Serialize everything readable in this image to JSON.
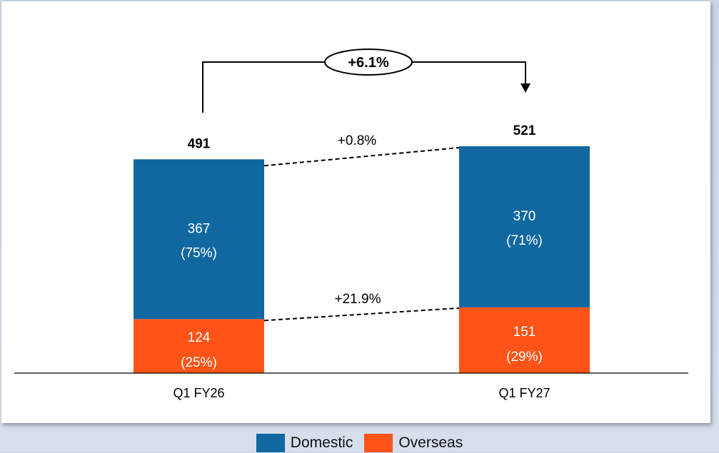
{
  "chart_data": {
    "type": "bar",
    "stacked": true,
    "categories": [
      "Q1 FY26",
      "Q1 FY27"
    ],
    "series": [
      {
        "name": "Domestic",
        "values": [
          367,
          370
        ],
        "labels": [
          "367",
          "370"
        ],
        "shares": [
          "(75%)",
          "(71%)"
        ],
        "color": "#1168a0"
      },
      {
        "name": "Overseas",
        "values": [
          124,
          151
        ],
        "labels": [
          "124",
          "151"
        ],
        "shares": [
          "(25%)",
          "(29%)"
        ],
        "color": "#ff5317"
      }
    ],
    "totals": [
      "491",
      "521"
    ],
    "growth": {
      "total": "+6.1%",
      "domestic": "+0.8%",
      "overseas": "+21.9%"
    },
    "legend": [
      "Domestic",
      "Overseas"
    ],
    "ylim": [
      0,
      600
    ]
  }
}
